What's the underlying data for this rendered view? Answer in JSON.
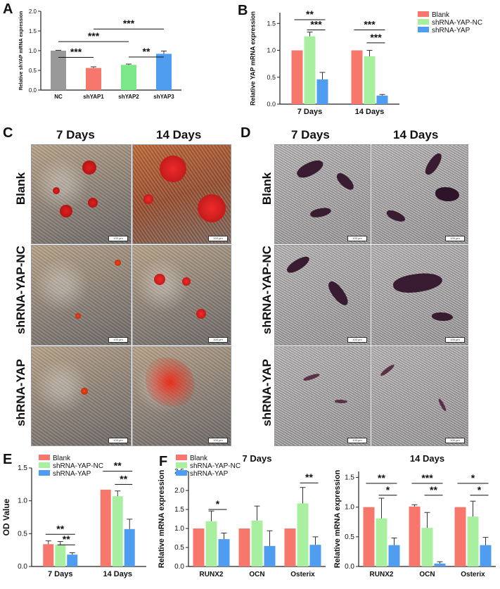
{
  "panels": {
    "A": "A",
    "B": "B",
    "C": "C",
    "D": "D",
    "E": "E",
    "F": "F"
  },
  "micrographs": {
    "col_7": "7 Days",
    "col_14": "14 Days",
    "rows": [
      "Blank",
      "shRNA-YAP-NC",
      "shRNA-YAP"
    ],
    "scale": "100 μm"
  },
  "chart_data": [
    {
      "id": "A",
      "type": "bar",
      "ylabel": "Relative shYAP mRNA expression",
      "ylim": [
        0,
        2.0
      ],
      "yticks": [
        "0.0",
        "0.5",
        "1.0",
        "1.5",
        "2.0"
      ],
      "categories": [
        "NC",
        "shYAP1",
        "shYAP2",
        "shYAP3"
      ],
      "values": [
        1.0,
        0.56,
        0.64,
        0.92
      ],
      "errors": [
        0.01,
        0.03,
        0.02,
        0.07
      ],
      "colors": [
        "#999999",
        "#F8776D",
        "#7DE88A",
        "#4E9DF0"
      ],
      "significance": [
        {
          "from": 0,
          "to": 1,
          "y": 0.83,
          "label": "***"
        },
        {
          "from": 0,
          "to": 2,
          "y": 1.23,
          "label": "***"
        },
        {
          "from": 1,
          "to": 3,
          "y": 1.55,
          "label": "***"
        },
        {
          "from": 2,
          "to": 3,
          "y": 0.84,
          "label": "**"
        }
      ]
    },
    {
      "id": "B",
      "type": "bar",
      "ylabel": "Relative YAP mRNA expression",
      "ylim": [
        0,
        1.7
      ],
      "yticks": [
        "0.0",
        "0.5",
        "1.0",
        "1.5"
      ],
      "categories": [
        "7 Days",
        "14 Days"
      ],
      "series": [
        {
          "name": "Blank",
          "values": [
            1.0,
            1.0
          ],
          "errors": [
            0.0,
            0.0
          ],
          "color": "#F8776D"
        },
        {
          "name": "shRNA-YAP-NC",
          "values": [
            1.26,
            0.89
          ],
          "errors": [
            0.08,
            0.11
          ],
          "color": "#A8F0A0"
        },
        {
          "name": "shRNA-YAP",
          "values": [
            0.46,
            0.16
          ],
          "errors": [
            0.13,
            0.02
          ],
          "color": "#4E9DF0"
        }
      ],
      "legend": "top-right",
      "significance": [
        {
          "group": 0,
          "from": 0,
          "to": 2,
          "y": 1.57,
          "label": "**"
        },
        {
          "group": 0,
          "from": 1,
          "to": 2,
          "y": 1.38,
          "label": "***"
        },
        {
          "group": 1,
          "from": 0,
          "to": 2,
          "y": 1.38,
          "label": "***"
        },
        {
          "group": 1,
          "from": 1,
          "to": 2,
          "y": 1.14,
          "label": "***"
        }
      ]
    },
    {
      "id": "E",
      "type": "bar",
      "ylabel": "OD Value",
      "ylim": [
        0,
        1.5
      ],
      "yticks": [
        "0.0",
        "0.5",
        "1.0",
        "1.5"
      ],
      "categories": [
        "7 Days",
        "14 Days"
      ],
      "series": [
        {
          "name": "Blank",
          "values": [
            0.34,
            1.17
          ],
          "errors": [
            0.05,
            0.0
          ],
          "color": "#F8776D"
        },
        {
          "name": "shRNA-YAP-NC",
          "values": [
            0.33,
            1.07
          ],
          "errors": [
            0.05,
            0.08
          ],
          "color": "#A8F0A0"
        },
        {
          "name": "shRNA-YAP",
          "values": [
            0.18,
            0.57
          ],
          "errors": [
            0.03,
            0.15
          ],
          "color": "#4E9DF0"
        }
      ],
      "legend": "top-left",
      "significance": [
        {
          "group": 0,
          "from": 0,
          "to": 2,
          "y": 0.49,
          "label": "**"
        },
        {
          "group": 0,
          "from": 1,
          "to": 2,
          "y": 0.33,
          "label": "**"
        },
        {
          "group": 1,
          "from": 0,
          "to": 2,
          "y": 1.45,
          "label": "**"
        },
        {
          "group": 1,
          "from": 1,
          "to": 2,
          "y": 1.25,
          "label": "**"
        }
      ]
    },
    {
      "id": "F1",
      "type": "bar",
      "title": "7 Days",
      "ylabel": "Relative mRNA expression",
      "ylim": [
        0,
        2.5
      ],
      "yticks": [
        "0.0",
        "0.5",
        "1.0",
        "1.5",
        "2.0",
        "2.5"
      ],
      "categories": [
        "RUNX2",
        "OCN",
        "Osterix"
      ],
      "series": [
        {
          "name": "Blank",
          "values": [
            1.0,
            1.0,
            1.0
          ],
          "errors": [
            0.0,
            0.0,
            0.0
          ],
          "color": "#F8776D"
        },
        {
          "name": "shRNA-YAP-NC",
          "values": [
            1.19,
            1.21,
            1.66
          ],
          "errors": [
            0.27,
            0.38,
            0.42
          ],
          "color": "#A8F0A0"
        },
        {
          "name": "shRNA-YAP",
          "values": [
            0.72,
            0.54,
            0.57
          ],
          "errors": [
            0.16,
            0.4,
            0.21
          ],
          "color": "#4E9DF0"
        }
      ],
      "legend": "top-left",
      "significance": [
        {
          "group": 0,
          "from": 1,
          "to": 2,
          "y": 1.5,
          "label": "*"
        },
        {
          "group": 2,
          "from": 1,
          "to": 2,
          "y": 2.2,
          "label": "**"
        }
      ]
    },
    {
      "id": "F2",
      "type": "bar",
      "title": "14 Days",
      "ylabel": "Relative mRNA expression",
      "ylim": [
        0,
        1.6
      ],
      "yticks": [
        "0.0",
        "0.5",
        "1.0",
        "1.5"
      ],
      "categories": [
        "RUNX2",
        "OCN",
        "Osterix"
      ],
      "series": [
        {
          "name": "Blank",
          "values": [
            1.0,
            1.01,
            1.0
          ],
          "errors": [
            0.0,
            0.03,
            0.0
          ],
          "color": "#F8776D"
        },
        {
          "name": "shRNA-YAP-NC",
          "values": [
            0.81,
            0.65,
            0.84
          ],
          "errors": [
            0.34,
            0.26,
            0.26
          ],
          "color": "#A8F0A0"
        },
        {
          "name": "shRNA-YAP",
          "values": [
            0.36,
            0.05,
            0.36
          ],
          "errors": [
            0.12,
            0.03,
            0.13
          ],
          "color": "#4E9DF0"
        }
      ],
      "significance": [
        {
          "group": 0,
          "from": 0,
          "to": 2,
          "y": 1.4,
          "label": "**"
        },
        {
          "group": 0,
          "from": 1,
          "to": 2,
          "y": 1.2,
          "label": "*"
        },
        {
          "group": 1,
          "from": 0,
          "to": 2,
          "y": 1.4,
          "label": "***"
        },
        {
          "group": 1,
          "from": 1,
          "to": 2,
          "y": 1.2,
          "label": "**"
        },
        {
          "group": 2,
          "from": 0,
          "to": 2,
          "y": 1.4,
          "label": "*"
        },
        {
          "group": 2,
          "from": 1,
          "to": 2,
          "y": 1.2,
          "label": "*"
        }
      ]
    }
  ]
}
